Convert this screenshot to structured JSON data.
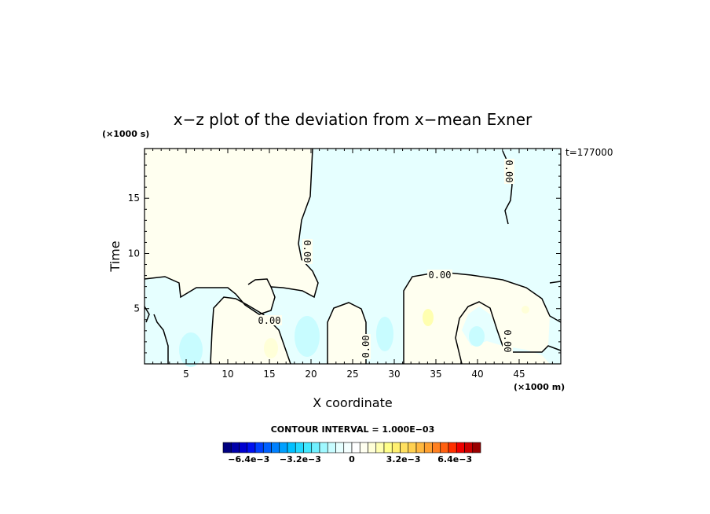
{
  "chart_data": {
    "type": "contour",
    "title": "x−z plot of the deviation from x−mean Exner",
    "xlabel": "X coordinate",
    "ylabel": "Time",
    "x_unit": "(×1000 m)",
    "y_unit": "(×1000 s)",
    "timestamp": "t=177000",
    "xlim": [
      0,
      50
    ],
    "ylim": [
      0,
      19.5
    ],
    "x_ticks": [
      5,
      10,
      15,
      20,
      25,
      30,
      35,
      40,
      45
    ],
    "y_ticks": [
      5,
      10,
      15
    ],
    "contour_interval_text": "CONTOUR INTERVAL = 1.000E−03",
    "contour_label": "0.00",
    "colorbar": {
      "range": [
        -0.008,
        0.008
      ],
      "tick_labels": [
        "−6.4e−3",
        "−3.2e−3",
        "0",
        "3.2e−3",
        "6.4e−3"
      ],
      "tick_values": [
        -0.0064,
        -0.0032,
        0,
        0.0032,
        0.0064
      ],
      "colors": [
        "#000080",
        "#0000aa",
        "#0000d0",
        "#0010f0",
        "#0040ff",
        "#0060ff",
        "#0080ff",
        "#00a0ff",
        "#00c0ff",
        "#20d8ff",
        "#40e8ff",
        "#70f0ff",
        "#a0f8ff",
        "#c8fcff",
        "#e6ffff",
        "#f4ffff",
        "#ffffff",
        "#fffff0",
        "#ffffd8",
        "#ffffb0",
        "#ffff88",
        "#fff070",
        "#ffe060",
        "#ffd050",
        "#ffb840",
        "#ffa030",
        "#ff8020",
        "#ff6010",
        "#ff3000",
        "#ee0000",
        "#cc0000",
        "#990000"
      ]
    },
    "fill_colors": {
      "negative": "#e6ffff",
      "positive": "#fffff0",
      "strong_negative": "#c8fcff",
      "strong_positive": "#ffffd8"
    }
  }
}
